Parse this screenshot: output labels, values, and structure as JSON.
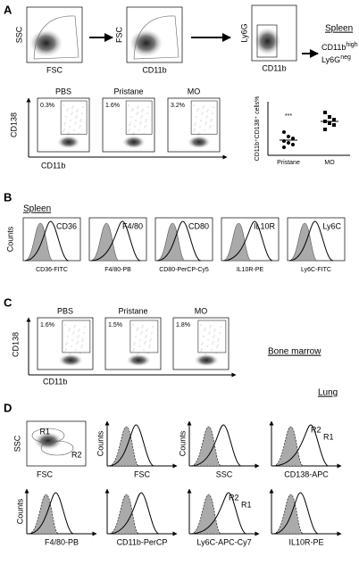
{
  "panels": [
    {
      "label": "A",
      "tissue": "Spleen",
      "gating": [
        {
          "y": "SSC",
          "x": "FSC"
        },
        {
          "y": "FSC",
          "x": "CD11b"
        },
        {
          "y": "Ly6G",
          "x": "CD11b"
        }
      ],
      "gate_result": [
        {
          "text": "CD11b",
          "sup": "high"
        },
        {
          "text": "Ly6G",
          "sup": "neg"
        }
      ],
      "dot_plots": {
        "y": "CD138",
        "x": "CD11b",
        "groups": [
          {
            "name": "PBS",
            "percent": "0.3%"
          },
          {
            "name": "Pristane",
            "percent": "1.6%"
          },
          {
            "name": "MO",
            "percent": "3.2%"
          }
        ]
      }
    },
    {
      "label": "B",
      "tissue": "Spleen",
      "y": "Counts",
      "histograms": [
        {
          "marker": "CD36",
          "x": "CD36-FITC"
        },
        {
          "marker": "F4/80",
          "x": "F4/80-PB"
        },
        {
          "marker": "CD80",
          "x": "CD80-PerCP-Cy5"
        },
        {
          "marker": "IL10R",
          "x": "IL10R-PE"
        },
        {
          "marker": "Ly6C",
          "x": "Ly6C-FITC"
        }
      ]
    },
    {
      "label": "C",
      "tissue": "Bone marrow",
      "y": "CD138",
      "x": "CD11b",
      "groups": [
        {
          "name": "PBS",
          "percent": "1.6%"
        },
        {
          "name": "Pristane",
          "percent": "1.5%"
        },
        {
          "name": "MO",
          "percent": "1.8%"
        }
      ]
    },
    {
      "label": "D",
      "tissue": "Lung",
      "scatter": {
        "y": "SSC",
        "x": "FSC",
        "gates": [
          "R1",
          "R2"
        ]
      },
      "histograms": [
        {
          "y": "Counts",
          "x": "FSC"
        },
        {
          "y": "Counts",
          "x": "SSC"
        },
        {
          "x": "CD138-APC",
          "gates": [
            "R2",
            "R1"
          ]
        },
        {
          "y": "Counts",
          "x": "F4/80-PB"
        },
        {
          "x": "CD11b-PerCP"
        },
        {
          "x": "Ly6C-APC-Cy7",
          "gates": [
            "R2",
            "R1"
          ]
        },
        {
          "x": "IL10R-PE"
        }
      ]
    }
  ],
  "chart_data": {
    "type": "strip",
    "ylabel": "CD11b⁺CD138⁺ cells%",
    "categories": [
      "Pristane",
      "MO"
    ],
    "values": [
      [
        2.6,
        2.1,
        1.9,
        1.6,
        1.4,
        1.2,
        0.9
      ],
      [
        4.8,
        4.3,
        4.0,
        3.8,
        3.6,
        3.4,
        2.9
      ]
    ],
    "means": [
      1.7,
      3.8
    ],
    "markers": [
      "circle",
      "square"
    ],
    "color": "#000000",
    "significance": [
      "***",
      null
    ],
    "ylim": [
      0,
      6
    ]
  }
}
